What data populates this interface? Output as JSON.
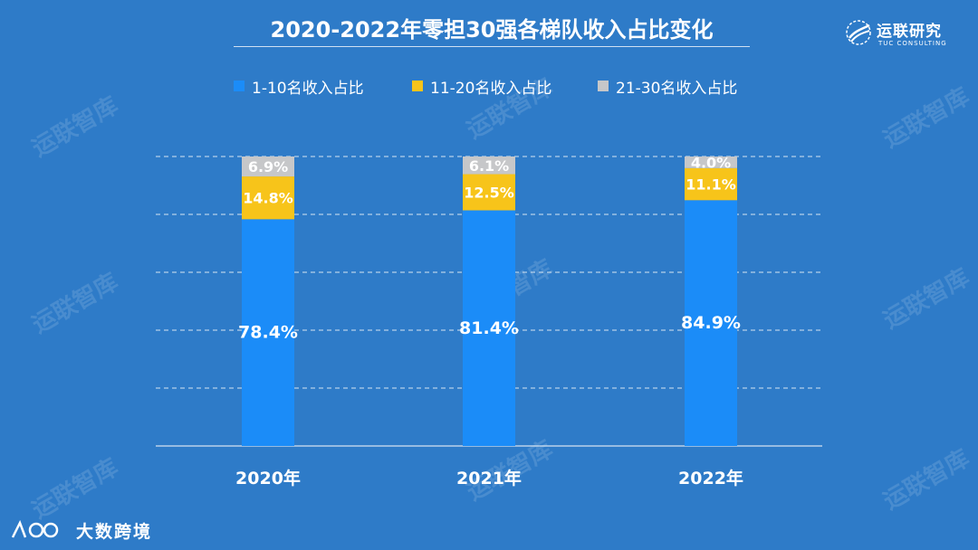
{
  "title": "2020-2022年零担30强各梯队收入占比变化",
  "brand": {
    "name": "运联研究",
    "sub": "TUC CONSULTING"
  },
  "footer": {
    "name": "大数跨境"
  },
  "watermark": "运联智库",
  "colors": {
    "background": "#2e7bc8",
    "tier1": "#1b8cf8",
    "tier2": "#f7c41a",
    "tier3": "#c6c7c9"
  },
  "chart_data": {
    "type": "bar",
    "stacked": true,
    "title": "2020-2022年零担30强各梯队收入占比变化",
    "categories": [
      "2020年",
      "2021年",
      "2022年"
    ],
    "series": [
      {
        "name": "1-10名收入占比",
        "values": [
          78.4,
          81.4,
          84.9
        ],
        "labels": [
          "78.4%",
          "81.4%",
          "84.9%"
        ]
      },
      {
        "name": "11-20名收入占比",
        "values": [
          14.8,
          12.5,
          11.1
        ],
        "labels": [
          "14.8%",
          "12.5%",
          "11.1%"
        ]
      },
      {
        "name": "21-30名收入占比",
        "values": [
          6.9,
          6.1,
          4.0
        ],
        "labels": [
          "6.9%",
          "6.1%",
          "4.0%"
        ]
      }
    ],
    "ylim": [
      0,
      100
    ],
    "grid": true,
    "legend": "top"
  }
}
